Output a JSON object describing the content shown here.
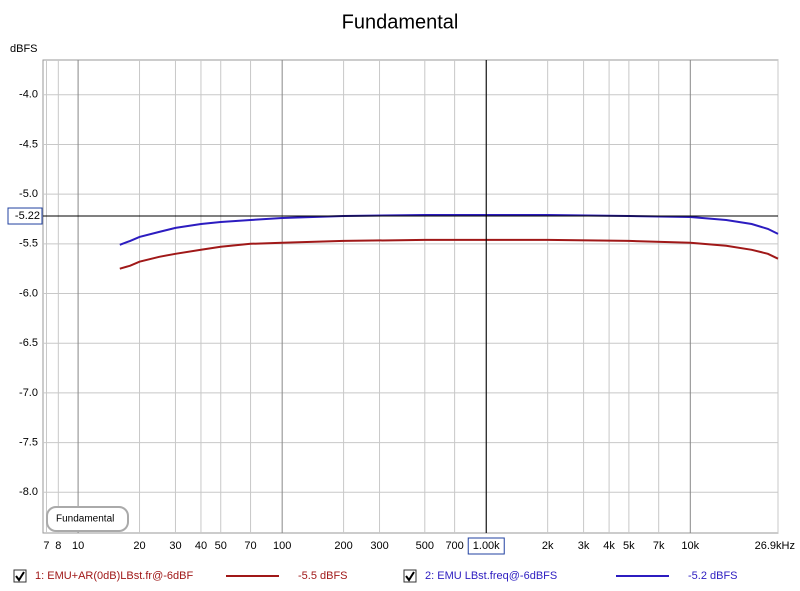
{
  "chart_data": {
    "type": "line",
    "title": "Fundamental",
    "y_label": "dBFS",
    "annotation": "Fundamental",
    "x_scale": "log",
    "grid": true,
    "x": [
      16,
      18,
      20,
      25,
      30,
      40,
      50,
      70,
      100,
      200,
      500,
      1000,
      2000,
      5000,
      10000,
      15000,
      20000,
      24000,
      26900
    ],
    "series": [
      {
        "name": "1: EMU+AR(0dB)LBst.fr@-6dBF",
        "color": "#a01818",
        "cursor_label": "-5.5 dBFS",
        "values": [
          -5.75,
          -5.72,
          -5.68,
          -5.63,
          -5.6,
          -5.56,
          -5.53,
          -5.5,
          -5.49,
          -5.47,
          -5.46,
          -5.46,
          -5.46,
          -5.47,
          -5.49,
          -5.52,
          -5.56,
          -5.6,
          -5.65
        ]
      },
      {
        "name": "2: EMU LBst.freq@-6dBFS",
        "color": "#2c1cc0",
        "cursor_label": "-5.2 dBFS",
        "values": [
          -5.51,
          -5.47,
          -5.43,
          -5.38,
          -5.34,
          -5.3,
          -5.28,
          -5.26,
          -5.24,
          -5.22,
          -5.21,
          -5.21,
          -5.21,
          -5.22,
          -5.23,
          -5.26,
          -5.3,
          -5.35,
          -5.4
        ]
      }
    ],
    "xlim": [
      6.73,
      26900
    ],
    "xticks": [
      7,
      8,
      10,
      20,
      30,
      40,
      50,
      70,
      100,
      200,
      300,
      500,
      700,
      {
        "value": 1000,
        "label": "1.00k"
      },
      {
        "value": 2000,
        "label": "2k"
      },
      {
        "value": 3000,
        "label": "3k"
      },
      {
        "value": 4000,
        "label": "4k"
      },
      {
        "value": 5000,
        "label": "5k"
      },
      {
        "value": 7000,
        "label": "7k"
      },
      {
        "value": 10000,
        "label": "10k"
      },
      {
        "value": 26900,
        "label": "26.9kHz"
      }
    ],
    "ylim": [
      -8.41,
      -3.65
    ],
    "yticks": [
      {
        "value": -4,
        "label": "-4.0"
      },
      -4.5,
      {
        "value": -5,
        "label": "-5.0"
      },
      -5.5,
      {
        "value": -6,
        "label": "-6.0"
      },
      -6.5,
      {
        "value": -7,
        "label": "-7.0"
      },
      -7.5,
      {
        "value": -8,
        "label": "-8.0"
      }
    ],
    "cursor": {
      "x": 1000,
      "y": -5.22
    }
  }
}
